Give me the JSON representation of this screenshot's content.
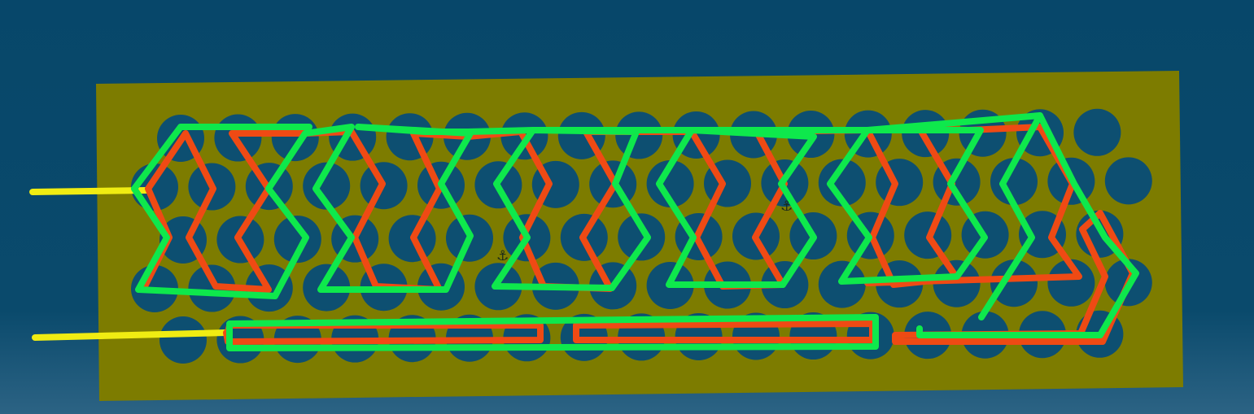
{
  "colors": {
    "background_top": "#07476a",
    "background_bottom": "#2c6384",
    "board": "#7d7c00",
    "hole": "#0d4f71",
    "red_wire": "#ef4a14",
    "green_wire": "#0ee84c",
    "lead_wire": "#f0ec12",
    "marker": "#1a2a1a"
  },
  "scene": {
    "board": "rectangular-plate",
    "hole_grid": "staggered-circular-holes",
    "wires": [
      "red-serpentine-wire",
      "green-serpentine-wire",
      "yellow-lead-wires"
    ],
    "marker_icon": "anchor-icon",
    "marker_glyph": "⚓"
  }
}
